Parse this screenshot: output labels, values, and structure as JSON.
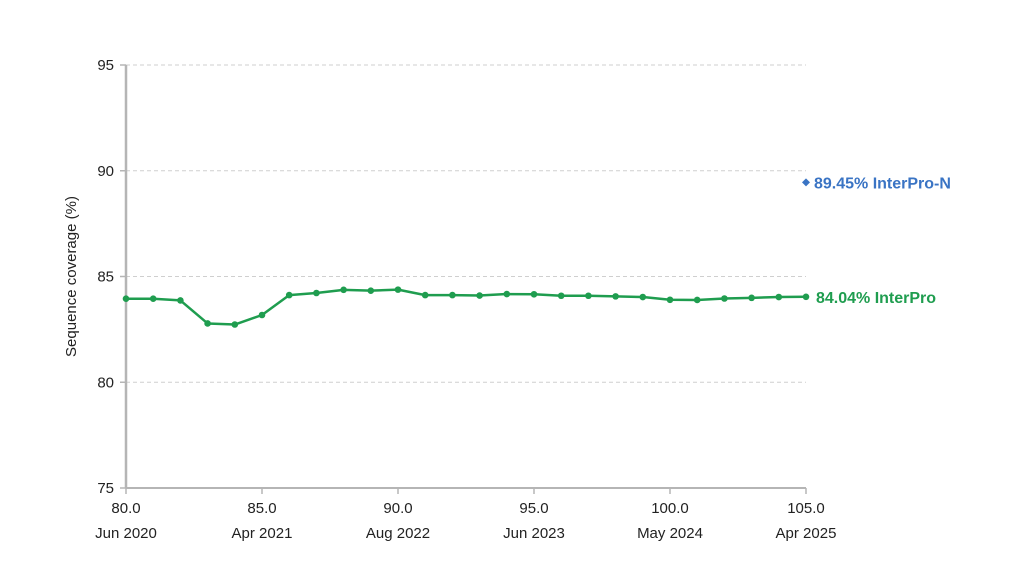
{
  "chart_data": {
    "type": "line",
    "title": "",
    "xlabel": "",
    "ylabel": "Sequence coverage (%)",
    "xlim": [
      80,
      105
    ],
    "ylim": [
      75,
      95
    ],
    "grid": true,
    "x_ticks": [
      {
        "value": 80,
        "label": "80.0",
        "date": "Jun 2020"
      },
      {
        "value": 85,
        "label": "85.0",
        "date": "Apr 2021"
      },
      {
        "value": 90,
        "label": "90.0",
        "date": "Aug 2022"
      },
      {
        "value": 95,
        "label": "95.0",
        "date": "Jun 2023"
      },
      {
        "value": 100,
        "label": "100.0",
        "date": "May 2024"
      },
      {
        "value": 105,
        "label": "105.0",
        "date": "Apr 2025"
      }
    ],
    "y_ticks": [
      {
        "value": 75,
        "label": "75"
      },
      {
        "value": 80,
        "label": "80"
      },
      {
        "value": 85,
        "label": "85"
      },
      {
        "value": 90,
        "label": "90"
      },
      {
        "value": 95,
        "label": "95"
      }
    ],
    "series": [
      {
        "name": "InterPro",
        "color": "#1f9d4f",
        "end_label": "84.04% InterPro",
        "x": [
          80,
          81,
          82,
          83,
          84,
          85,
          86,
          87,
          88,
          89,
          90,
          91,
          92,
          93,
          94,
          95,
          96,
          97,
          98,
          99,
          100,
          101,
          102,
          103,
          104,
          105
        ],
        "y": [
          83.95,
          83.95,
          83.87,
          82.78,
          82.73,
          83.18,
          84.12,
          84.22,
          84.37,
          84.33,
          84.38,
          84.12,
          84.12,
          84.1,
          84.17,
          84.16,
          84.09,
          84.09,
          84.06,
          84.03,
          83.9,
          83.89,
          83.96,
          83.99,
          84.03,
          84.04
        ]
      },
      {
        "name": "InterPro-N",
        "color": "#3a74c4",
        "end_label": "89.45% InterPro-N",
        "marker": "diamond",
        "x": [
          105
        ],
        "y": [
          89.45
        ]
      }
    ]
  }
}
